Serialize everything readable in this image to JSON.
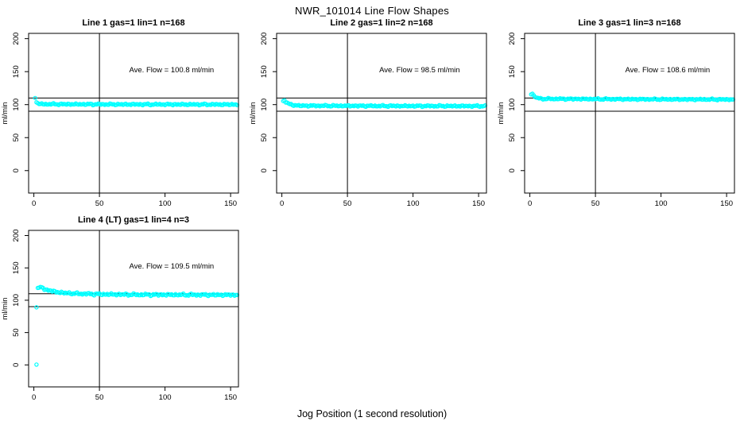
{
  "figure": {
    "main_title": "NWR_101014  Line Flow Shapes",
    "x_axis_label": "Jog Position (1 second resolution)",
    "background_color": "#FFFFFF",
    "text_color": "#000000"
  },
  "chart_data": {
    "type": "scatter",
    "title": "NWR_101014  Line Flow Shapes",
    "xlabel": "Jog Position (1 second resolution)",
    "ylabel": "ml/min",
    "marker": {
      "shape": "open-circle",
      "color": "#00FFFF",
      "radius": 2.1,
      "stroke_width": 1.2
    },
    "x_ticks": [
      0,
      50,
      100,
      150
    ],
    "y_ticks": [
      0,
      50,
      100,
      150,
      200
    ],
    "xlim": [
      -4,
      156
    ],
    "ylim": [
      -34,
      208
    ],
    "grid": false,
    "reference_lines": {
      "horizontal": [
        90,
        110
      ],
      "vertical": [
        50
      ],
      "color": "#000000"
    },
    "annotation_pos": {
      "x": 105,
      "y": 149
    },
    "panels": [
      {
        "title": "Line 1 gas=1 lin=1 n=168",
        "annotation": "Ave. Flow =  100.8  ml/min",
        "ave_flow_ml_min": 100.8,
        "n": 168,
        "series": {
          "x_start": 1,
          "x_end": 155,
          "x_step": 1,
          "noise_amp": 1.3,
          "keypoints": [
            [
              1,
              110
            ],
            [
              2,
              103.5
            ],
            [
              4,
              100.8
            ],
            [
              60,
              100.4
            ],
            [
              155,
              100.2
            ]
          ]
        },
        "outliers": []
      },
      {
        "title": "Line 2 gas=1 lin=2 n=168",
        "annotation": "Ave. Flow =  98.5  ml/min",
        "ave_flow_ml_min": 98.5,
        "n": 168,
        "series": {
          "x_start": 1,
          "x_end": 155,
          "x_step": 1,
          "noise_amp": 1.3,
          "keypoints": [
            [
              1,
              105.5
            ],
            [
              2,
              106.5
            ],
            [
              3,
              104
            ],
            [
              5,
              101.5
            ],
            [
              8,
              99.5
            ],
            [
              14,
              98.4
            ],
            [
              80,
              98
            ],
            [
              155,
              97.8
            ]
          ]
        },
        "outliers": []
      },
      {
        "title": "Line 3 gas=1 lin=3 n=168",
        "annotation": "Ave. Flow =  108.6  ml/min",
        "ave_flow_ml_min": 108.6,
        "n": 168,
        "series": {
          "x_start": 1,
          "x_end": 155,
          "x_step": 1,
          "noise_amp": 1.2,
          "keypoints": [
            [
              1,
              115.5
            ],
            [
              2,
              116.5
            ],
            [
              3,
              113.5
            ],
            [
              5,
              110.5
            ],
            [
              9,
              108.8
            ],
            [
              80,
              108.2
            ],
            [
              155,
              107.8
            ]
          ]
        },
        "outliers": []
      },
      {
        "title": "Line 4 (LT) gas=1 lin=4 n=3",
        "annotation": "Ave. Flow =  109.5  ml/min",
        "ave_flow_ml_min": 109.5,
        "n": 3,
        "series": {
          "x_start": 3,
          "x_end": 155,
          "x_step": 1,
          "noise_amp": 1.8,
          "keypoints": [
            [
              3,
              119
            ],
            [
              5,
              120
            ],
            [
              7,
              118.5
            ],
            [
              10,
              116
            ],
            [
              15,
              113.5
            ],
            [
              22,
              111.5
            ],
            [
              32,
              110.3
            ],
            [
              50,
              109.3
            ],
            [
              80,
              108.6
            ],
            [
              155,
              108.2
            ]
          ]
        },
        "outliers": [
          [
            2,
            89
          ],
          [
            2,
            0.5
          ]
        ]
      }
    ]
  }
}
